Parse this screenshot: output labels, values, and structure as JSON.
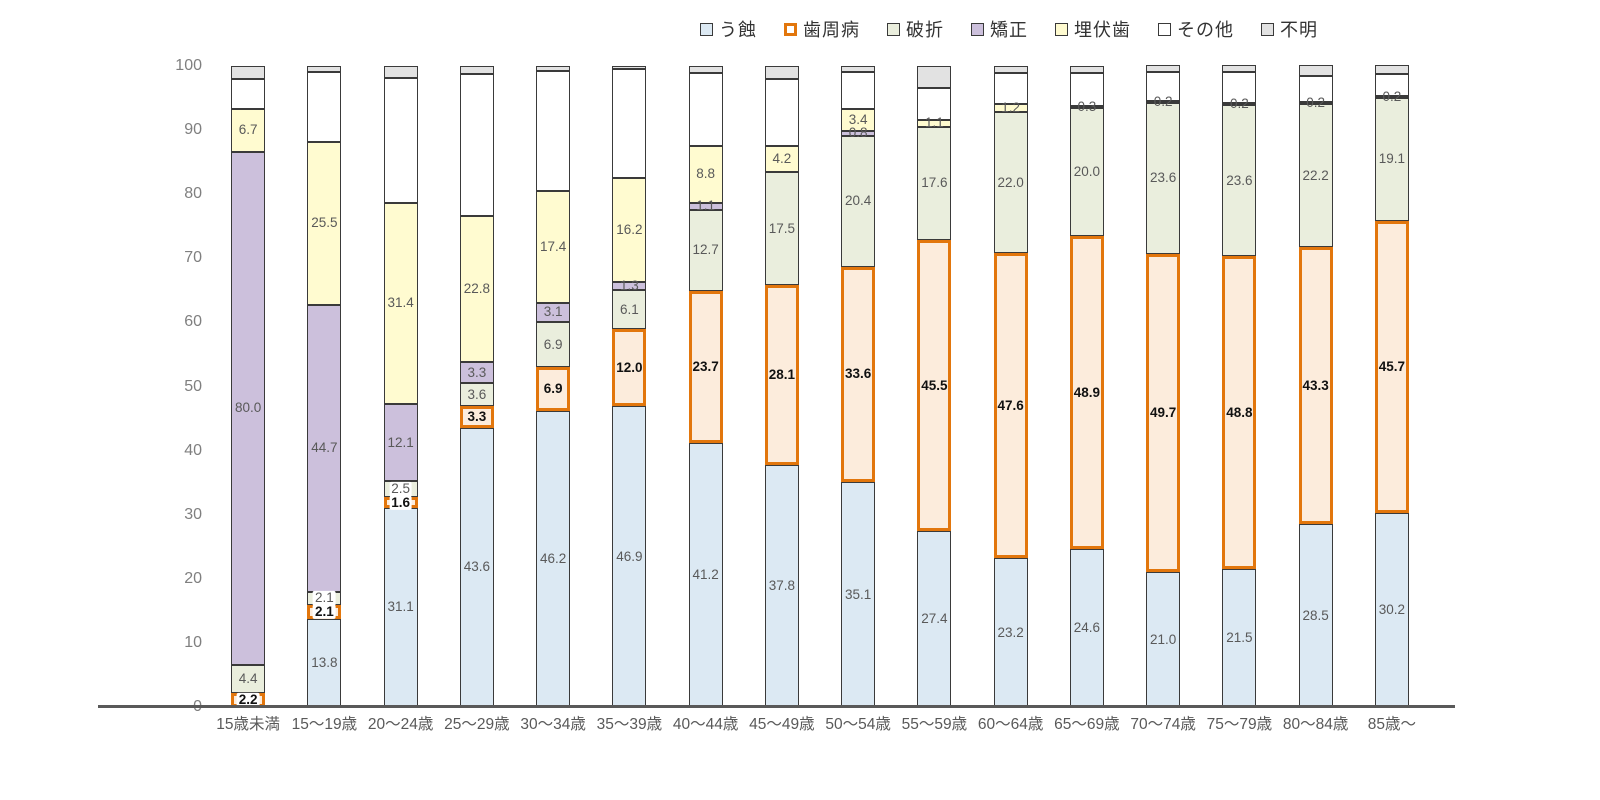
{
  "chart_data": {
    "type": "bar",
    "stacked": true,
    "percent_stacked": true,
    "title": "",
    "xlabel": "",
    "ylabel": "",
    "ylim": [
      0,
      100
    ],
    "yticks": [
      0,
      10,
      20,
      30,
      40,
      50,
      60,
      70,
      80,
      90,
      100
    ],
    "grid": false,
    "legend_position": "top",
    "categories": [
      "15歳未満",
      "15〜19歳",
      "20〜24歳",
      "25〜29歳",
      "30〜34歳",
      "35〜39歳",
      "40〜44歳",
      "45〜49歳",
      "50〜54歳",
      "55〜59歳",
      "60〜64歳",
      "65〜69歳",
      "70〜74歳",
      "75〜79歳",
      "80〜84歳",
      "85歳〜"
    ],
    "series": [
      {
        "key": "caries",
        "name": "う蝕",
        "fill": "#dce9f3",
        "border": "#3a3a3a",
        "border_width": 1,
        "swatch_fill": "#dce9f3",
        "swatch_border": "#3a3a3a",
        "swatch_border_width": 1,
        "show_labels": true,
        "label_color": "#595959",
        "label_bold": false,
        "values": [
          0,
          13.8,
          31.1,
          43.6,
          46.2,
          46.9,
          41.2,
          37.8,
          35.1,
          27.4,
          23.2,
          24.6,
          21.0,
          21.5,
          28.5,
          30.2
        ]
      },
      {
        "key": "periodontal",
        "name": "歯周病",
        "fill": "#fcecdc",
        "border": "#e2760c",
        "border_width": 3.5,
        "swatch_fill": "#ffffff",
        "swatch_border": "#e2760c",
        "swatch_border_width": 3,
        "show_labels": true,
        "label_color": "#111111",
        "label_bold": true,
        "values": [
          2.2,
          2.1,
          1.6,
          3.3,
          6.9,
          12.0,
          23.7,
          28.1,
          33.6,
          45.5,
          47.6,
          48.9,
          49.7,
          48.8,
          43.3,
          45.7
        ]
      },
      {
        "key": "fracture",
        "name": "破折",
        "fill": "#eaeedd",
        "border": "#3a3a3a",
        "border_width": 1,
        "swatch_fill": "#eaeedd",
        "swatch_border": "#3a3a3a",
        "swatch_border_width": 1,
        "show_labels": true,
        "label_color": "#595959",
        "label_bold": false,
        "values": [
          4.4,
          2.1,
          2.5,
          3.6,
          6.9,
          6.1,
          12.7,
          17.5,
          20.4,
          17.6,
          22.0,
          20.0,
          23.6,
          23.6,
          22.2,
          19.1
        ]
      },
      {
        "key": "orthodontic",
        "name": "矯正",
        "fill": "#ccc0dc",
        "border": "#3a3a3a",
        "border_width": 1,
        "swatch_fill": "#ccc0dc",
        "swatch_border": "#3a3a3a",
        "swatch_border_width": 1,
        "show_labels": true,
        "label_color": "#595959",
        "label_bold": false,
        "values": [
          80.0,
          44.7,
          12.1,
          3.3,
          3.1,
          1.3,
          1.1,
          0,
          0.8,
          0,
          0,
          0,
          0,
          0,
          0,
          0
        ]
      },
      {
        "key": "impacted",
        "name": "埋伏歯",
        "fill": "#fffbd0",
        "border": "#3a3a3a",
        "border_width": 1,
        "swatch_fill": "#fffbd0",
        "swatch_border": "#3a3a3a",
        "swatch_border_width": 1,
        "show_labels": true,
        "label_color": "#595959",
        "label_bold": false,
        "values": [
          6.7,
          25.5,
          31.4,
          22.8,
          17.4,
          16.2,
          8.8,
          4.2,
          3.4,
          1.1,
          1.2,
          0.3,
          0.2,
          0.2,
          0.2,
          0.2
        ]
      },
      {
        "key": "other",
        "name": "その他",
        "fill": "#ffffff",
        "border": "#3a3a3a",
        "border_width": 1,
        "swatch_fill": "#ffffff",
        "swatch_border": "#3a3a3a",
        "swatch_border_width": 1,
        "show_labels": false,
        "label_color": "#595959",
        "label_bold": false,
        "values": [
          4.6,
          10.9,
          19.5,
          22.1,
          18.7,
          17.1,
          11.4,
          10.4,
          5.8,
          4.9,
          4.9,
          5.1,
          4.5,
          4.8,
          4.2,
          3.5
        ]
      },
      {
        "key": "unknown",
        "name": "不明",
        "fill": "#e2e2e2",
        "border": "#3a3a3a",
        "border_width": 1,
        "swatch_fill": "#e2e2e2",
        "swatch_border": "#3a3a3a",
        "swatch_border_width": 1,
        "show_labels": false,
        "label_color": "#595959",
        "label_bold": false,
        "values": [
          2.1,
          0.9,
          1.8,
          1.3,
          0.8,
          0.4,
          1.1,
          2.0,
          0.9,
          3.5,
          1.1,
          1.1,
          1.0,
          1.1,
          1.6,
          1.3
        ]
      }
    ],
    "axis_color": "#595959",
    "ytick_label_color": "#7f7f7f",
    "xtick_label_color": "#595959"
  }
}
